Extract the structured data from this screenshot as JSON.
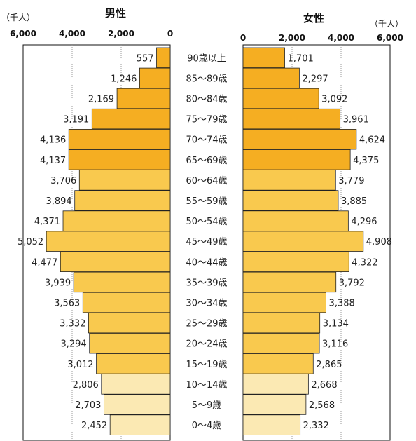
{
  "chart_data": {
    "type": "bar",
    "title_male": "男性",
    "title_female": "女性",
    "unit_left": "（千人）",
    "unit_right": "（千人）",
    "ticks": [
      0,
      2000,
      4000,
      6000
    ],
    "tick_labels": [
      "0",
      "2,000",
      "4,000",
      "6,000"
    ],
    "xlim": [
      0,
      6000
    ],
    "grid": true,
    "categories": [
      "90歳以上",
      "85〜89歳",
      "80〜84歳",
      "75〜79歳",
      "70〜74歳",
      "65〜69歳",
      "60〜64歳",
      "55〜59歳",
      "50〜54歳",
      "45〜49歳",
      "40〜44歳",
      "35〜39歳",
      "30〜34歳",
      "25〜29歳",
      "20〜24歳",
      "15〜19歳",
      "10〜14歳",
      "5〜9歳",
      "0〜4歳"
    ],
    "series": [
      {
        "name": "男性",
        "values": [
          557,
          1246,
          2169,
          3191,
          4136,
          4137,
          3706,
          3894,
          4371,
          5052,
          4477,
          3939,
          3563,
          3332,
          3294,
          3012,
          2806,
          2703,
          2452
        ],
        "labels": [
          "557",
          "1,246",
          "2,169",
          "3,191",
          "4,136",
          "4,137",
          "3,706",
          "3,894",
          "4,371",
          "5,052",
          "4,477",
          "3,939",
          "3,563",
          "3,332",
          "3,294",
          "3,012",
          "2,806",
          "2,703",
          "2,452"
        ]
      },
      {
        "name": "女性",
        "values": [
          1701,
          2297,
          3092,
          3961,
          4624,
          4375,
          3779,
          3885,
          4296,
          4908,
          4322,
          3792,
          3388,
          3134,
          3116,
          2865,
          2668,
          2568,
          2332
        ],
        "labels": [
          "1,701",
          "2,297",
          "3,092",
          "3,961",
          "4,624",
          "4,375",
          "3,779",
          "3,885",
          "4,296",
          "4,908",
          "4,322",
          "3,792",
          "3,388",
          "3,134",
          "3,116",
          "2,865",
          "2,668",
          "2,568",
          "2,332"
        ]
      }
    ],
    "group_colors": {
      "elderly": "#f5ae22",
      "working": "#f9c94e",
      "young": "#fbe9b3"
    },
    "groups": [
      "elderly",
      "elderly",
      "elderly",
      "elderly",
      "elderly",
      "elderly",
      "working",
      "working",
      "working",
      "working",
      "working",
      "working",
      "working",
      "working",
      "working",
      "working",
      "young",
      "young",
      "young"
    ]
  }
}
